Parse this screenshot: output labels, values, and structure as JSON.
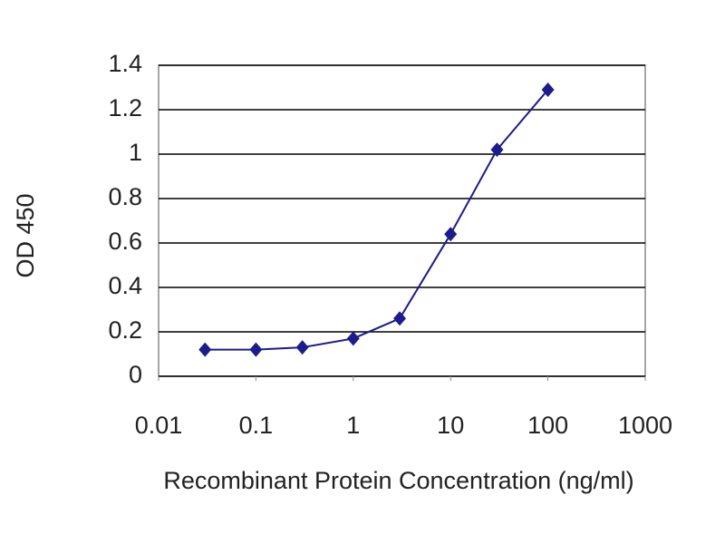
{
  "chart_data": {
    "type": "line",
    "x_label": "Recombinant Protein Concentration (ng/ml)",
    "y_label": "OD 450",
    "x": [
      0.03,
      0.1,
      0.3,
      1,
      3,
      10,
      30,
      100
    ],
    "series": [
      {
        "color": "#1c1c8c",
        "values": [
          0.12,
          0.12,
          0.13,
          0.17,
          0.26,
          0.64,
          1.02,
          1.29
        ]
      }
    ],
    "xscale": "log",
    "xlim": [
      0.01,
      1000
    ],
    "xticks": [
      0.01,
      0.1,
      1,
      10,
      100,
      1000
    ],
    "ylim": [
      0,
      1.4
    ],
    "yticks": [
      0,
      0.2,
      0.4,
      0.6,
      0.8,
      1,
      1.2,
      1.4
    ],
    "grid": true
  }
}
